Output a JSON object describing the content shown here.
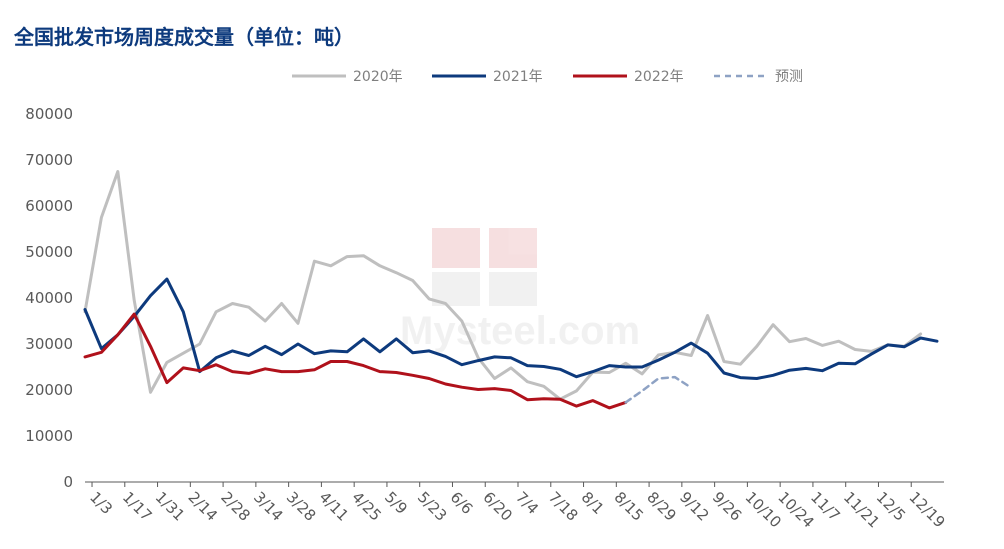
{
  "chart_data": {
    "type": "line",
    "title": "全国批发市场周度成交量（单位：吨）",
    "watermark": "我的钢铁 Mysteel.com",
    "ylim": [
      0,
      80000
    ],
    "y_ticks": [
      0,
      10000,
      20000,
      30000,
      40000,
      50000,
      60000,
      70000,
      80000
    ],
    "x_ticks": [
      "1/3",
      "1/17",
      "1/31",
      "2/14",
      "2/28",
      "3/14",
      "3/28",
      "4/11",
      "4/25",
      "5/9",
      "5/23",
      "6/6",
      "6/20",
      "7/4",
      "7/18",
      "8/1",
      "8/15",
      "8/29",
      "9/12",
      "9/26",
      "10/10",
      "10/24",
      "11/7",
      "11/21",
      "12/5",
      "12/19"
    ],
    "x_ticks_start_day": [
      3,
      17,
      31,
      45,
      59,
      73,
      87,
      101,
      115,
      129,
      143,
      157,
      171,
      185,
      199,
      213,
      227,
      241,
      255,
      269,
      283,
      297,
      311,
      325,
      339,
      353
    ],
    "x_range_days": [
      0,
      367
    ],
    "legend_position": "top",
    "colors": {
      "s2020": "#bfbfbf",
      "s2021": "#0d3a7d",
      "s2022": "#b0111b",
      "forecast": "#8ea2c4",
      "axis": "#595959",
      "title": "#0d3a7d"
    },
    "series": [
      {
        "name": "2020年",
        "color": "#bfbfbf",
        "style": "solid",
        "x_day": [
          0,
          7,
          14,
          21,
          28,
          35,
          42,
          49,
          56,
          63,
          70,
          77,
          84,
          91,
          98,
          105,
          112,
          119,
          126,
          133,
          140,
          147,
          154,
          161,
          168,
          175,
          182,
          189,
          196,
          203,
          210,
          217,
          224,
          231,
          238,
          245,
          252,
          259,
          266,
          273,
          280,
          287,
          294,
          301,
          308,
          315,
          322,
          329,
          336,
          343,
          350,
          357
        ],
        "values": [
          37000,
          57500,
          67500,
          39500,
          19500,
          26000,
          28000,
          30000,
          37000,
          38800,
          38000,
          35000,
          38800,
          34500,
          48000,
          47000,
          49000,
          49200,
          47000,
          45500,
          43800,
          39800,
          38800,
          35000,
          27000,
          22500,
          24800,
          21800,
          20800,
          18000,
          19800,
          23900,
          23800,
          25800,
          23500,
          27600,
          28200,
          27500,
          36200,
          26200,
          25600,
          29500,
          34200,
          30500,
          31200,
          29700,
          30600,
          28800,
          28400,
          29800,
          29500,
          32200
        ]
      },
      {
        "name": "2021年",
        "color": "#0d3a7d",
        "style": "solid",
        "x_day": [
          0,
          7,
          14,
          21,
          28,
          35,
          42,
          49,
          56,
          63,
          70,
          77,
          84,
          91,
          98,
          105,
          112,
          119,
          126,
          133,
          140,
          147,
          154,
          161,
          168,
          175,
          182,
          189,
          196,
          203,
          210,
          217,
          224,
          231,
          238,
          245,
          252,
          259,
          266,
          273,
          280,
          287,
          294,
          301,
          308,
          315,
          322,
          329,
          336,
          343,
          350,
          357,
          364
        ],
        "values": [
          37500,
          29000,
          32000,
          36000,
          40500,
          44100,
          37000,
          24000,
          27000,
          28500,
          27500,
          29500,
          27700,
          30000,
          27900,
          28500,
          28300,
          31100,
          28300,
          31100,
          28100,
          28500,
          27300,
          25500,
          26400,
          27200,
          27000,
          25300,
          25100,
          24500,
          22900,
          24000,
          25300,
          25000,
          25000,
          26500,
          28200,
          30200,
          28000,
          23700,
          22700,
          22500,
          23200,
          24300,
          24700,
          24200,
          25800,
          25700,
          27800,
          29800,
          29400,
          31300,
          30600
        ]
      },
      {
        "name": "2022年",
        "color": "#b0111b",
        "style": "solid",
        "x_day": [
          0,
          7,
          14,
          21,
          28,
          35,
          42,
          49,
          56,
          63,
          70,
          77,
          84,
          91,
          98,
          105,
          112,
          119,
          126,
          133,
          140,
          147,
          154,
          161,
          168,
          175,
          182,
          189,
          196,
          203,
          210,
          217,
          224,
          231
        ],
        "values": [
          27200,
          28200,
          32000,
          36500,
          29500,
          21600,
          24800,
          24200,
          25500,
          24000,
          23600,
          24600,
          24000,
          24000,
          24400,
          26200,
          26200,
          25300,
          24000,
          23800,
          23200,
          22500,
          21300,
          20600,
          20100,
          20300,
          19900,
          17900,
          18100,
          18000,
          16500,
          17700,
          16100,
          17300
        ]
      },
      {
        "name": "预测",
        "color": "#8ea2c4",
        "style": "dashed",
        "x_day": [
          231,
          238,
          245,
          252,
          259
        ],
        "values": [
          17300,
          19800,
          22500,
          22800,
          20500
        ]
      }
    ]
  }
}
